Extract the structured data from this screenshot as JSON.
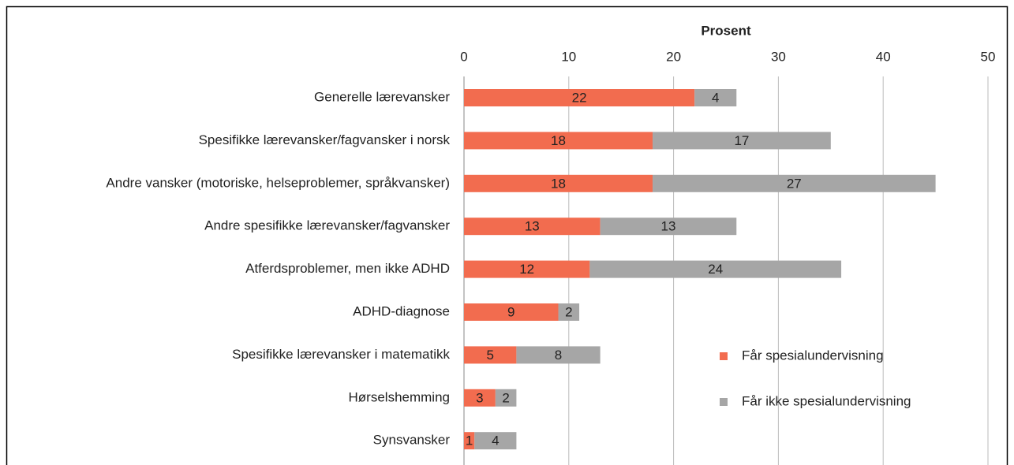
{
  "chart_data": {
    "type": "bar",
    "orientation": "horizontal",
    "stacked": true,
    "x_label": "Prosent",
    "categories": [
      "Generelle lærevansker",
      "Spesifikke lærevansker/fagvansker i norsk",
      "Andre vansker (motoriske, helseproblemer, språkvansker)",
      "Andre spesifikke lærevansker/fagvansker",
      "Atferdsproblemer, men ikke ADHD",
      "ADHD-diagnose",
      "Spesifikke lærevansker i matematikk",
      "Hørselshemming",
      "Synsvansker"
    ],
    "series": [
      {
        "name": "Får spesialundervisning",
        "color": "#f26c4f",
        "values": [
          22,
          18,
          18,
          13,
          12,
          9,
          5,
          3,
          1
        ]
      },
      {
        "name": "Får ikke spesialundervisning",
        "color": "#a6a6a6",
        "values": [
          4,
          17,
          27,
          13,
          24,
          2,
          8,
          2,
          4
        ]
      }
    ],
    "xlim": [
      0,
      50
    ],
    "xticks": [
      0,
      10,
      20,
      30,
      40,
      50
    ],
    "grid": true,
    "legend": "lower right"
  }
}
